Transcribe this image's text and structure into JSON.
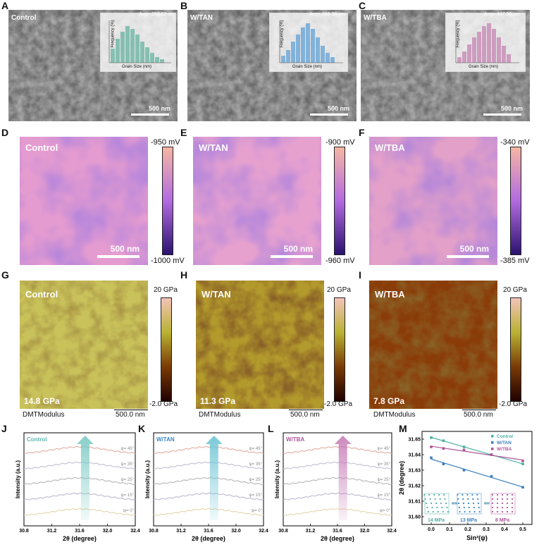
{
  "panel_letters": [
    "A",
    "B",
    "C",
    "D",
    "E",
    "F",
    "G",
    "H",
    "I",
    "J",
    "K",
    "L",
    "M"
  ],
  "sem": [
    {
      "title": "Control",
      "avg": "Avg= 293.02 nm",
      "xlabel": "Grain Size (nm)",
      "ylabel": "Frequency (%)",
      "scale": "500 nm",
      "hist_color": "#6fb7a6"
    },
    {
      "title": "W/TAN",
      "avg": "Avg= 396.38 nm",
      "xlabel": "Grain Size (nm)",
      "ylabel": "Frequency (%)",
      "scale": "500 nm",
      "hist_color": "#6aa6d8"
    },
    {
      "title": "W/TBA",
      "avg": "Avg= 447.56 nm",
      "xlabel": "Grain Size (nm)",
      "ylabel": "Frequency (%)",
      "scale": "500 nm",
      "hist_color": "#c78bb6"
    }
  ],
  "kpfm": [
    {
      "title": "Control",
      "top": "-950 mV",
      "bottom": "-1000 mV",
      "scale": "500 nm"
    },
    {
      "title": "W/TAN",
      "top": "-900 mV",
      "bottom": "-960 mV",
      "scale": "500 nm"
    },
    {
      "title": "W/TBA",
      "top": "-340 mV",
      "bottom": "-385 mV",
      "scale": "500 nm"
    }
  ],
  "dmt": [
    {
      "title": "Control",
      "value": "14.8 GPa",
      "top": "20 GPa",
      "bottom": "-2.0 GPa",
      "label": "DMTModulus",
      "scale": "500.0 nm"
    },
    {
      "title": "W/TAN",
      "value": "11.3 GPa",
      "top": "20 GPa",
      "bottom": "-2.0 GPa",
      "label": "DMTModulus",
      "scale": "500.0 nm"
    },
    {
      "title": "W/TBA",
      "value": "7.8 GPa",
      "top": "20 GPa",
      "bottom": "-2.0 GPa",
      "label": "DMTModulus",
      "scale": "500.0 nm"
    }
  ],
  "xrd": [
    {
      "title": "Control",
      "title_color": "#5bb8b0",
      "arrow_color": "#7cc9c4"
    },
    {
      "title": "W/TAN",
      "title_color": "#3a86c8",
      "arrow_color": "#6cc4d4"
    },
    {
      "title": "W/TBA",
      "title_color": "#b0569a",
      "arrow_color": "#c77cb7"
    }
  ],
  "xrd_common": {
    "ylabel": "Intensity (a.u.)",
    "xlabel": "2θ (degree)",
    "xticks": [
      "30.8",
      "31.2",
      "31.6",
      "32.0",
      "32.4"
    ],
    "psi": [
      "ψ= 45°",
      "ψ= 35°",
      "ψ= 25°",
      "ψ= 15°",
      "ψ= 0°"
    ]
  },
  "chart_data": {
    "type": "scatter",
    "xlabel": "Sin²(ψ)",
    "ylabel": "2θ (degree)",
    "xlim": [
      -0.05,
      0.55
    ],
    "ylim": [
      31.595,
      31.655
    ],
    "xticks": [
      "0.0",
      "0.1",
      "0.2",
      "0.3",
      "0.4",
      "0.5"
    ],
    "yticks": [
      "31.60",
      "31.61",
      "31.62",
      "31.63",
      "31.64",
      "31.65"
    ],
    "legend_position": "top-right",
    "series": [
      {
        "name": "Control",
        "color": "#4fb0a6",
        "x": [
          0.0,
          0.067,
          0.179,
          0.329,
          0.5
        ],
        "y": [
          31.651,
          31.649,
          31.645,
          31.64,
          31.634
        ]
      },
      {
        "name": "W/TAN",
        "color": "#3a7fbf",
        "x": [
          0.0,
          0.067,
          0.179,
          0.329,
          0.5
        ],
        "y": [
          31.638,
          31.634,
          31.63,
          31.626,
          31.619
        ]
      },
      {
        "name": "W/TBA",
        "color": "#b0569a",
        "x": [
          0.0,
          0.067,
          0.179,
          0.329,
          0.5
        ],
        "y": [
          31.645,
          31.644,
          31.643,
          31.64,
          31.636
        ]
      }
    ],
    "annotations": [
      "14 MPa",
      "13 MPa",
      "8 MPa"
    ]
  }
}
